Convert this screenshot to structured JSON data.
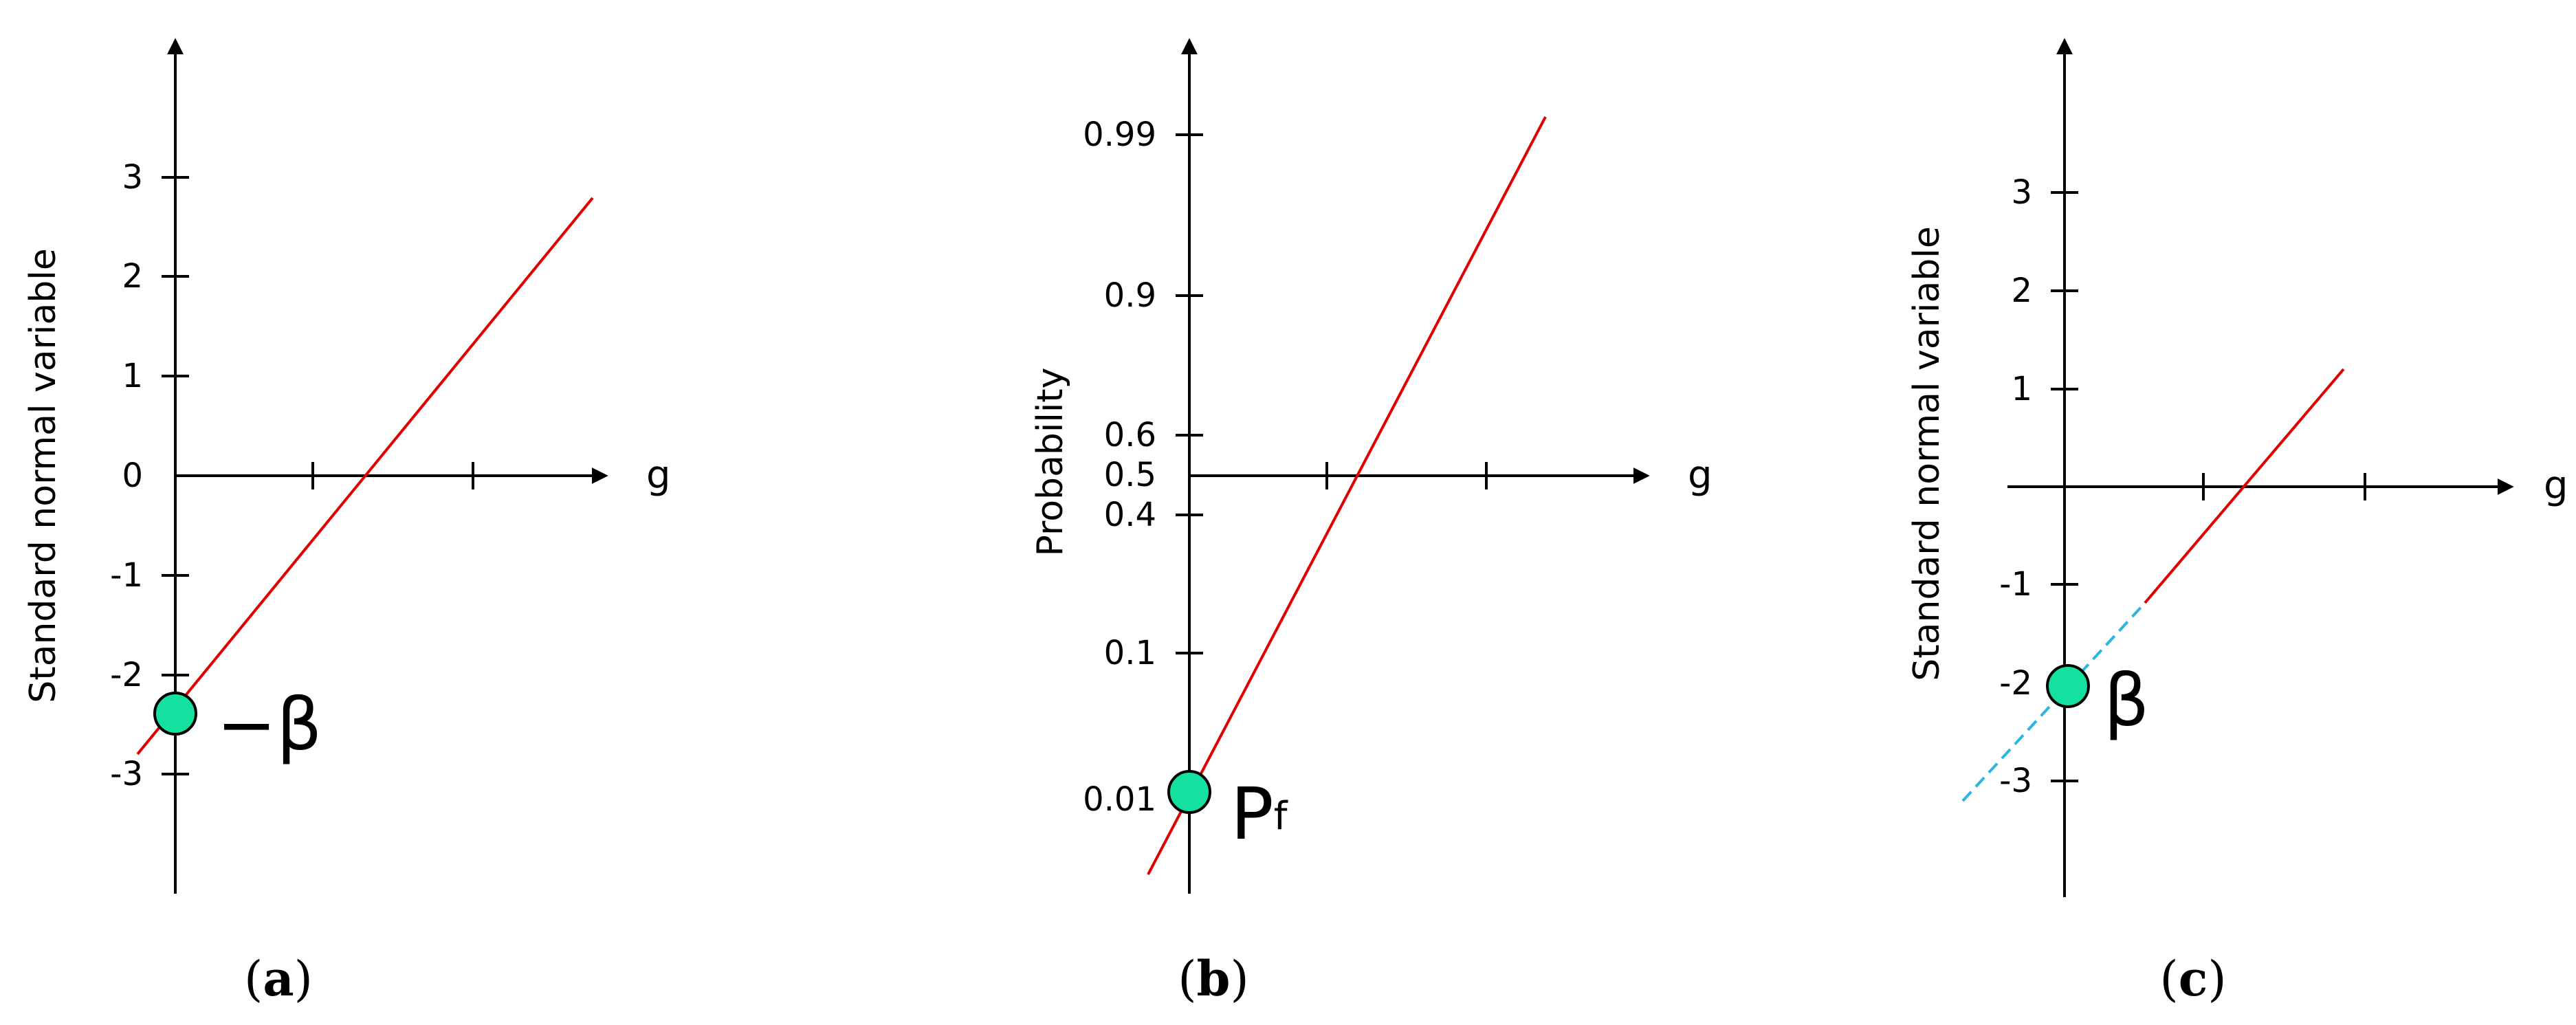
{
  "colors": {
    "axis": "#000000",
    "line": "#e00000",
    "dashed_line": "#2bb5e0",
    "marker_fill": "#14e0a0",
    "marker_stroke": "#000000"
  },
  "panels": [
    {
      "id": "a",
      "caption": {
        "open": "(",
        "letter": "a",
        "close": ")"
      },
      "ylabel": "Standard normal variable",
      "xlabel": "g",
      "yticks": [
        {
          "value": 3,
          "label": "3"
        },
        {
          "value": 2,
          "label": "2"
        },
        {
          "value": 1,
          "label": "1"
        },
        {
          "value": 0,
          "label": "0"
        },
        {
          "value": -1,
          "label": "-1"
        },
        {
          "value": -2,
          "label": "-2"
        },
        {
          "value": -3,
          "label": "-3"
        }
      ],
      "marker_label": "−β",
      "line_style": "solid"
    },
    {
      "id": "b",
      "caption": {
        "open": "(",
        "letter": "b",
        "close": ")"
      },
      "ylabel": "Probability",
      "xlabel": "g",
      "yticks": [
        {
          "value": 0.99,
          "label": "0.99"
        },
        {
          "value": 0.9,
          "label": "0.9"
        },
        {
          "value": 0.6,
          "label": "0.6"
        },
        {
          "value": 0.5,
          "label": "0.5"
        },
        {
          "value": 0.4,
          "label": "0.4"
        },
        {
          "value": 0.1,
          "label": "0.1"
        },
        {
          "value": 0.01,
          "label": "0.01"
        }
      ],
      "marker_label": "P",
      "marker_label_sub": "f",
      "line_style": "solid"
    },
    {
      "id": "c",
      "caption": {
        "open": "(",
        "letter": "c",
        "close": ")"
      },
      "ylabel": "Standard normal variable",
      "xlabel": "g",
      "yticks": [
        {
          "value": 3,
          "label": "3"
        },
        {
          "value": 2,
          "label": "2"
        },
        {
          "value": 1,
          "label": "1"
        },
        {
          "value": -1,
          "label": "-1"
        },
        {
          "value": -2,
          "label": "-2"
        },
        {
          "value": -3,
          "label": "-3"
        }
      ],
      "marker_label": "β",
      "line_style": "solid+dashed"
    }
  ]
}
